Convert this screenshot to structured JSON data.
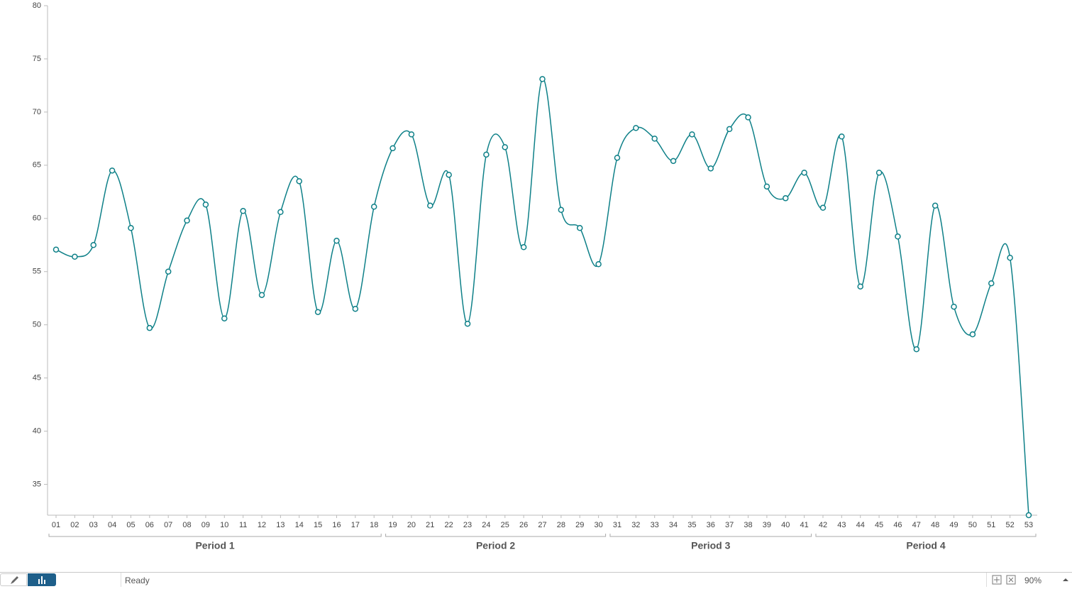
{
  "chart_data": {
    "type": "line",
    "smooth": true,
    "color": "#0e8088",
    "categories": [
      "01",
      "02",
      "03",
      "04",
      "05",
      "06",
      "07",
      "08",
      "09",
      "10",
      "11",
      "12",
      "13",
      "14",
      "15",
      "16",
      "17",
      "18",
      "19",
      "20",
      "21",
      "22",
      "23",
      "24",
      "25",
      "26",
      "27",
      "28",
      "29",
      "30",
      "31",
      "32",
      "33",
      "34",
      "35",
      "36",
      "37",
      "38",
      "39",
      "40",
      "41",
      "42",
      "43",
      "44",
      "45",
      "46",
      "47",
      "48",
      "49",
      "50",
      "51",
      "52",
      "53"
    ],
    "values": [
      57.07,
      56.4,
      57.5,
      64.5,
      59.1,
      49.7,
      55.0,
      59.8,
      61.3,
      50.6,
      60.7,
      52.8,
      60.6,
      63.5,
      51.2,
      57.9,
      51.5,
      61.1,
      66.6,
      67.9,
      61.2,
      64.1,
      50.1,
      66.0,
      66.7,
      57.3,
      73.1,
      60.8,
      59.1,
      55.7,
      65.7,
      68.5,
      67.5,
      65.4,
      67.9,
      64.7,
      68.4,
      69.5,
      63.0,
      61.9,
      64.3,
      61.0,
      67.7,
      53.6,
      64.3,
      58.3,
      47.7,
      61.2,
      51.7,
      49.1,
      53.9,
      56.3,
      32.1
    ],
    "groups": [
      {
        "label": "Period 1",
        "from": "01",
        "to": "18"
      },
      {
        "label": "Period 2",
        "from": "19",
        "to": "30"
      },
      {
        "label": "Period 3",
        "from": "31",
        "to": "41"
      },
      {
        "label": "Period 4",
        "from": "42",
        "to": "53"
      }
    ],
    "ylim": [
      32.1,
      80
    ],
    "yticks": [
      35,
      40,
      45,
      50,
      55,
      60,
      65,
      70,
      75,
      80
    ]
  },
  "status_bar": {
    "status": "Ready",
    "zoom": "90%"
  }
}
